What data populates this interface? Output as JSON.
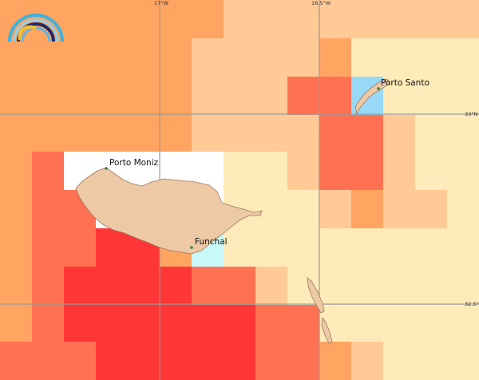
{
  "map": {
    "graticule": {
      "longitude_labels": [
        "17°W",
        "16.5°W"
      ],
      "latitude_labels": [
        "33°N",
        "32.5°N"
      ]
    },
    "places": [
      {
        "name": "Porto Santo"
      },
      {
        "name": "Porto Moniz"
      },
      {
        "name": "Funchal"
      }
    ],
    "palette": {
      "light_yellow": "#FFEBB9",
      "peach": "#FFCA95",
      "orange": "#FFA461",
      "coral": "#FF7152",
      "red": "#FF3636",
      "light_blue": "#99D9F8",
      "pale_cyan": "#C9F8F8",
      "white": "#FFFFFF",
      "land": "#EDC9A6",
      "land_outline": "#9c7a5e",
      "grid": "#9a9a9a",
      "town_dot": "#2e8b2e"
    },
    "logo": {
      "icon": "rainbow-arc-logo"
    }
  }
}
